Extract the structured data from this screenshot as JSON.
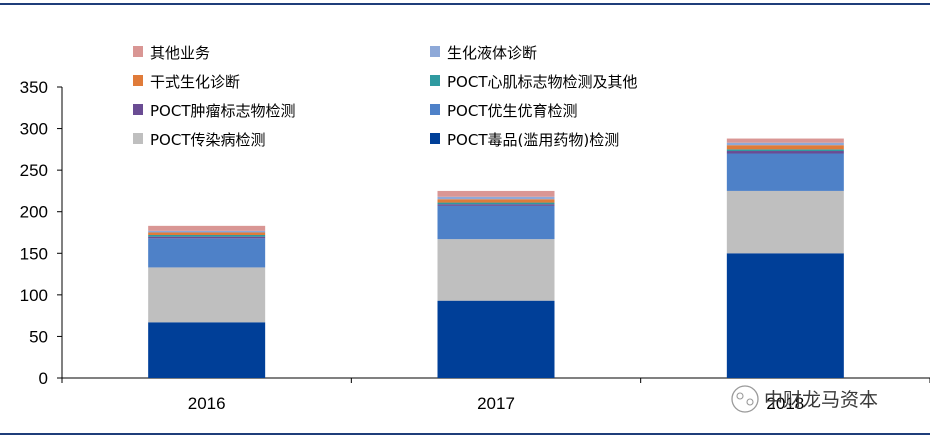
{
  "watermark": "中财龙马资本",
  "chart_data": {
    "type": "bar",
    "stacked": true,
    "categories": [
      "2016",
      "2017",
      "2018"
    ],
    "ylim": [
      0,
      350
    ],
    "yticks": [
      0,
      50,
      100,
      150,
      200,
      250,
      300,
      350
    ],
    "grid": false,
    "legend_position": "top",
    "series": [
      {
        "name": "POCT毒品(滥用药物)检测",
        "color": "#003f98",
        "values": [
          67,
          93,
          150
        ]
      },
      {
        "name": "POCT传染病检测",
        "color": "#bfbfbf",
        "values": [
          66,
          74,
          75
        ]
      },
      {
        "name": "POCT优生优育检测",
        "color": "#4e81c8",
        "values": [
          35,
          40,
          45
        ]
      },
      {
        "name": "POCT肿瘤标志物检测",
        "color": "#6a4c93",
        "values": [
          2,
          2,
          3
        ]
      },
      {
        "name": "POCT心肌标志物检测及其他",
        "color": "#2f9aa0",
        "values": [
          2,
          2,
          2
        ]
      },
      {
        "name": "干式生化诊断",
        "color": "#e07b39",
        "values": [
          3,
          4,
          5
        ]
      },
      {
        "name": "生化液体诊断",
        "color": "#8ea9d8",
        "values": [
          2,
          3,
          3
        ]
      },
      {
        "name": "其他业务",
        "color": "#d99694",
        "values": [
          6,
          7,
          5
        ]
      }
    ],
    "legend_order": [
      "其他业务",
      "生化液体诊断",
      "干式生化诊断",
      "POCT心肌标志物检测及其他",
      "POCT肿瘤标志物检测",
      "POCT优生优育检测",
      "POCT传染病检测",
      "POCT毒品(滥用药物)检测"
    ]
  }
}
